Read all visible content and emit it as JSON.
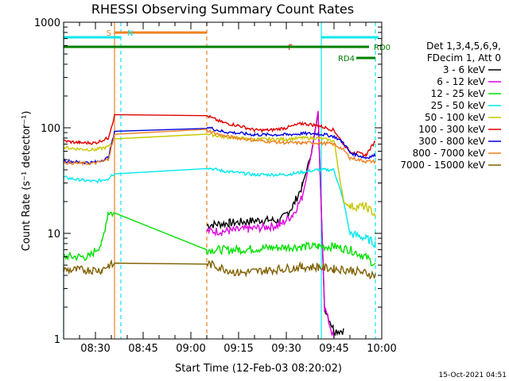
{
  "chart_data": {
    "type": "line",
    "title": "RHESSI Observing Summary Count Rates",
    "xlabel": "Start Time (12-Feb-03 08:20:02)",
    "ylabel": "Count Rate (s⁻¹ detector⁻¹)",
    "ylim": [
      1,
      1000
    ],
    "yscale": "log",
    "xlim": [
      "08:20",
      "10:00"
    ],
    "x_ticks": [
      "08:30",
      "08:45",
      "09:00",
      "09:15",
      "09:30",
      "09:45",
      "10:00"
    ],
    "y_ticks": [
      "1",
      "10",
      "100",
      "1000"
    ],
    "timestamp": "15-Oct-2021 04:51",
    "legend": {
      "placement": "right",
      "header1": "Det 1,3,4,5,6,9,",
      "header2": "FDecim 1, Att 0"
    },
    "flags": [
      {
        "label": "S",
        "start": "08:36",
        "end": "09:05",
        "color": "#f08020",
        "level": "top"
      },
      {
        "label": "N",
        "start": "08:20",
        "end": "08:38",
        "color": "#00e8f0",
        "level": "top"
      },
      {
        "label": "N",
        "start": "09:41",
        "end": "09:59",
        "color": "#00e8f0",
        "level": "top"
      },
      {
        "label": "F",
        "start": "09:33",
        "end": "09:39",
        "color": "#e00000",
        "level": "mid"
      },
      {
        "label": "RD0",
        "start": "08:20",
        "end": "09:56",
        "color": "#008000",
        "level": "mid"
      },
      {
        "label": "RD4",
        "start": "09:52",
        "end": "09:58",
        "color": "#008000",
        "level": "low"
      }
    ],
    "vlines": [
      {
        "time": "08:36",
        "color": "#f08020",
        "style": "solid"
      },
      {
        "time": "08:38",
        "color": "#00e8f0",
        "style": "dashed"
      },
      {
        "time": "09:05",
        "color": "#f08020",
        "style": "dashed"
      },
      {
        "time": "09:41",
        "color": "#00e8f0",
        "style": "solid"
      },
      {
        "time": "09:58",
        "color": "#00e8f0",
        "style": "dashed"
      },
      {
        "time": "08:20",
        "color": "#00e8f0",
        "style": "solid"
      }
    ],
    "gap": [
      "08:36",
      "09:05"
    ],
    "series": [
      {
        "name": "3 - 6 keV",
        "color": "#000000",
        "x": [
          "09:05",
          "09:12",
          "09:18",
          "09:24",
          "09:28",
          "09:32",
          "09:35",
          "09:38",
          "09:40",
          "09:42",
          "09:45",
          "09:48"
        ],
        "y": [
          12,
          12.5,
          13,
          13.5,
          13,
          18,
          28,
          60,
          140,
          2,
          1.2,
          1.2
        ]
      },
      {
        "name": "6 - 12 keV",
        "color": "#e000e0",
        "x": [
          "09:05",
          "09:12",
          "09:18",
          "09:24",
          "09:28",
          "09:32",
          "09:35",
          "09:38",
          "09:40",
          "09:42",
          "09:45"
        ],
        "y": [
          10.5,
          10.5,
          11,
          11.5,
          12,
          15,
          22,
          60,
          140,
          2,
          1
        ]
      },
      {
        "name": "12 - 25 keV",
        "color": "#00e000",
        "x": [
          "08:20",
          "08:28",
          "08:32",
          "08:34",
          "09:05",
          "09:15",
          "09:25",
          "09:35",
          "09:40",
          "09:45",
          "09:50",
          "09:55",
          "09:58"
        ],
        "y": [
          6,
          6,
          8,
          16,
          7,
          7,
          7.3,
          7.5,
          7.5,
          7.5,
          7,
          6,
          5
        ]
      },
      {
        "name": "25 - 50 keV",
        "color": "#00e8f0",
        "x": [
          "08:20",
          "08:25",
          "08:30",
          "08:34",
          "08:35",
          "09:05",
          "09:10",
          "09:20",
          "09:30",
          "09:35",
          "09:40",
          "09:45",
          "09:48",
          "09:50",
          "09:55",
          "09:58"
        ],
        "y": [
          34,
          32,
          31,
          33,
          36,
          42,
          39,
          36,
          36,
          38,
          40,
          40,
          20,
          10,
          9,
          8
        ]
      },
      {
        "name": "50 - 100 keV",
        "color": "#c8c800",
        "x": [
          "08:20",
          "08:25",
          "08:30",
          "08:34",
          "08:36",
          "09:05",
          "09:10",
          "09:20",
          "09:30",
          "09:35",
          "09:40",
          "09:45",
          "09:48",
          "09:50",
          "09:55",
          "09:58"
        ],
        "y": [
          65,
          63,
          62,
          66,
          80,
          88,
          82,
          78,
          78,
          80,
          80,
          75,
          20,
          18,
          18,
          15
        ]
      },
      {
        "name": "100 - 300 keV",
        "color": "#e00000",
        "x": [
          "08:20",
          "08:25",
          "08:30",
          "08:34",
          "08:36",
          "09:05",
          "09:10",
          "09:15",
          "09:20",
          "09:25",
          "09:30",
          "09:35",
          "09:40",
          "09:45",
          "09:48",
          "09:50",
          "09:55",
          "09:58"
        ],
        "y": [
          75,
          72,
          72,
          80,
          130,
          130,
          112,
          105,
          95,
          95,
          100,
          110,
          105,
          95,
          70,
          60,
          55,
          75
        ]
      },
      {
        "name": "300 - 800 keV",
        "color": "#0000e0",
        "x": [
          "08:20",
          "08:25",
          "08:30",
          "08:34",
          "08:36",
          "09:05",
          "09:10",
          "09:20",
          "09:30",
          "09:35",
          "09:40",
          "09:45",
          "09:48",
          "09:50",
          "09:55",
          "09:58"
        ],
        "y": [
          49,
          47,
          47,
          52,
          90,
          102,
          92,
          86,
          86,
          88,
          88,
          83,
          72,
          58,
          52,
          55
        ]
      },
      {
        "name": "800 - 7000 keV",
        "color": "#f08020",
        "x": [
          "08:20",
          "08:25",
          "08:30",
          "08:34",
          "08:36",
          "09:05",
          "09:10",
          "09:20",
          "09:30",
          "09:35",
          "09:40",
          "09:45",
          "09:48",
          "09:50",
          "09:55",
          "09:58"
        ],
        "y": [
          47,
          46,
          46,
          50,
          85,
          95,
          84,
          76,
          72,
          72,
          72,
          70,
          62,
          52,
          48,
          48
        ]
      },
      {
        "name": "7000 - 15000 keV",
        "color": "#806000",
        "x": [
          "08:20",
          "08:28",
          "08:32",
          "08:34",
          "09:05",
          "09:15",
          "09:25",
          "09:35",
          "09:40",
          "09:45",
          "09:50",
          "09:55",
          "09:58"
        ],
        "y": [
          4.5,
          4.5,
          4.5,
          5,
          5.2,
          4.2,
          4.5,
          4.8,
          4.8,
          4.6,
          4.5,
          4.2,
          4
        ]
      }
    ]
  }
}
